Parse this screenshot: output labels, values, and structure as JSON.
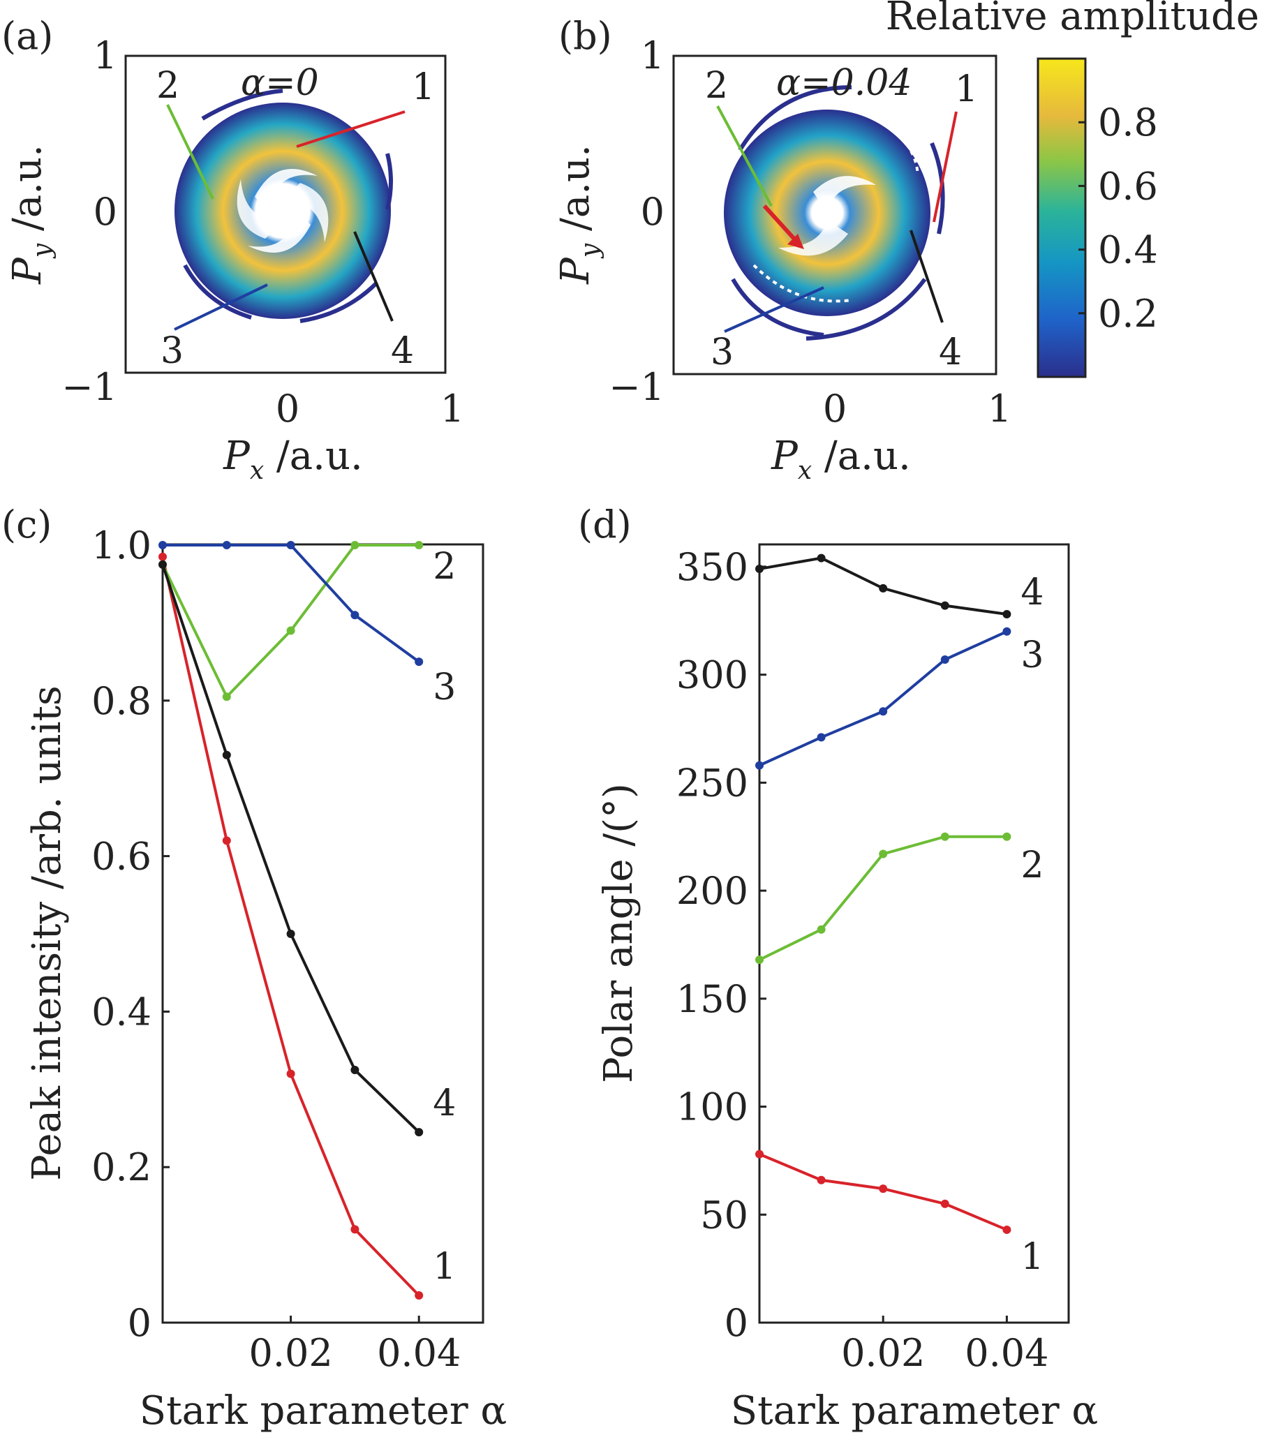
{
  "colors": {
    "red": "#d8232a",
    "green": "#6cbd35",
    "blue": "#1f3ea0",
    "black": "#1a1a1a"
  },
  "maps": {
    "a": {
      "panel_label": "(a)",
      "title": "α=0",
      "xlabel_main": "P",
      "xlabel_sub": "x",
      "xlabel_unit": " /a.u.",
      "ylabel_main": "P",
      "ylabel_sub": "y",
      "ylabel_unit": " /a.u.",
      "xticks": [
        "0",
        "1"
      ],
      "yticks": [
        "1",
        "0",
        "−1"
      ],
      "annotations": [
        "1",
        "2",
        "3",
        "4"
      ]
    },
    "b": {
      "panel_label": "(b)",
      "title": "α=0.04",
      "xlabel_main": "P",
      "xlabel_sub": "x",
      "xlabel_unit": " /a.u.",
      "ylabel_main": "P",
      "ylabel_sub": "y",
      "ylabel_unit": " /a.u.",
      "xticks": [
        "0",
        "1"
      ],
      "yticks": [
        "1",
        "0",
        "−1"
      ],
      "annotations": [
        "1",
        "2",
        "3",
        "4"
      ]
    },
    "colorbar": {
      "title": "Relative amplitude",
      "ticks": [
        0.8,
        0.6,
        0.4,
        0.2
      ],
      "tick_labels": [
        "0.8",
        "0.6",
        "0.4",
        "0.2"
      ],
      "range": [
        0,
        1
      ]
    }
  },
  "chart_data": [
    {
      "type": "line",
      "panel_label": "(c)",
      "xlabel": "Stark parameter α",
      "ylabel": "Peak intensity /arb. units",
      "xlim": [
        0,
        0.05
      ],
      "ylim": [
        0,
        1.0
      ],
      "xticks": [
        0.02,
        0.04
      ],
      "xtick_labels": [
        "0.02",
        "0.04"
      ],
      "yticks": [
        0,
        0.2,
        0.4,
        0.6,
        0.8,
        1.0
      ],
      "ytick_labels": [
        "0",
        "0.2",
        "0.4",
        "0.6",
        "0.8",
        "1.0"
      ],
      "x": [
        0,
        0.01,
        0.02,
        0.03,
        0.04
      ],
      "series": [
        {
          "name": "1",
          "color": "red",
          "values": [
            0.985,
            0.62,
            0.32,
            0.12,
            0.035
          ]
        },
        {
          "name": "2",
          "color": "green",
          "values": [
            0.975,
            0.805,
            0.89,
            1.0,
            1.0
          ]
        },
        {
          "name": "3",
          "color": "blue",
          "values": [
            1.0,
            1.0,
            1.0,
            0.91,
            0.85
          ]
        },
        {
          "name": "4",
          "color": "black",
          "values": [
            0.975,
            0.73,
            0.5,
            0.325,
            0.245
          ]
        }
      ]
    },
    {
      "type": "line",
      "panel_label": "(d)",
      "xlabel": "Stark parameter α",
      "ylabel": "Polar angle /(°)",
      "xlim": [
        0,
        0.05
      ],
      "ylim": [
        0,
        360
      ],
      "xticks": [
        0.02,
        0.04
      ],
      "xtick_labels": [
        "0.02",
        "0.04"
      ],
      "yticks": [
        0,
        50,
        100,
        150,
        200,
        250,
        300,
        350
      ],
      "ytick_labels": [
        "0",
        "50",
        "100",
        "150",
        "200",
        "250",
        "300",
        "350"
      ],
      "x": [
        0,
        0.01,
        0.02,
        0.03,
        0.04
      ],
      "series": [
        {
          "name": "1",
          "color": "red",
          "values": [
            78,
            66,
            62,
            55,
            43
          ]
        },
        {
          "name": "2",
          "color": "green",
          "values": [
            168,
            182,
            217,
            225,
            225
          ]
        },
        {
          "name": "3",
          "color": "blue",
          "values": [
            258,
            271,
            283,
            307,
            320
          ]
        },
        {
          "name": "4",
          "color": "black",
          "values": [
            349,
            354,
            340,
            332,
            328
          ]
        }
      ]
    }
  ]
}
